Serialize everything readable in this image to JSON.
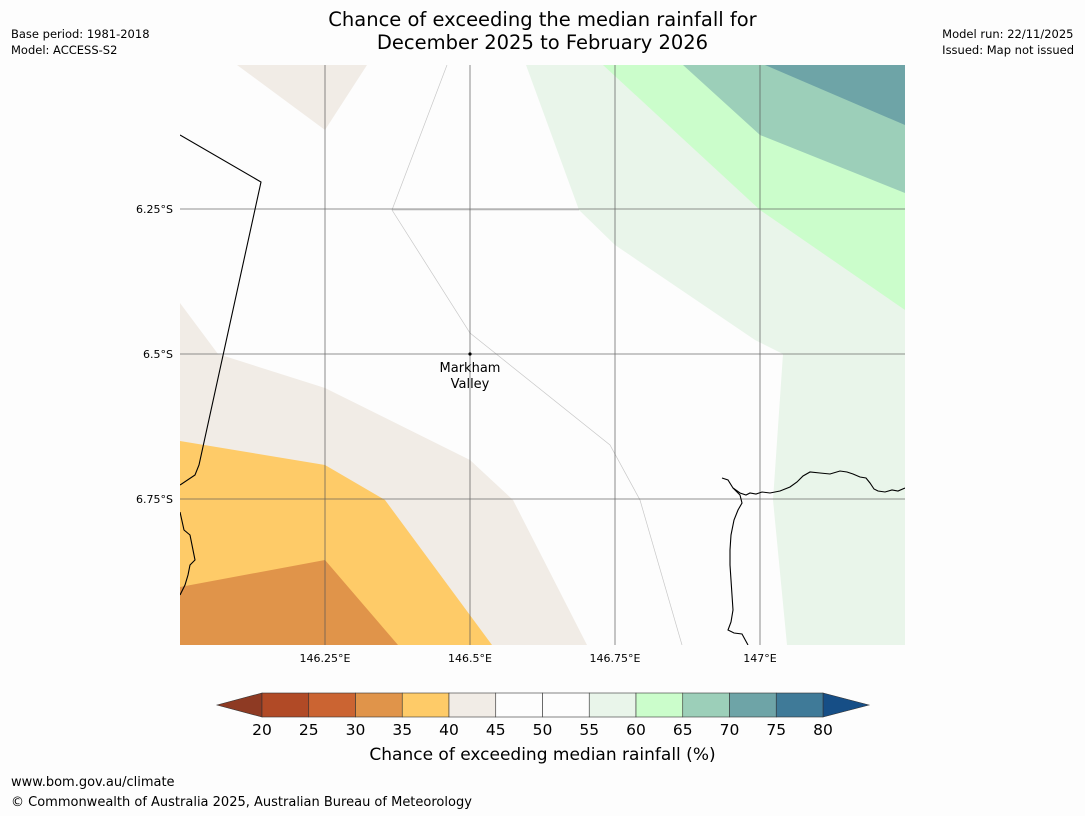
{
  "title": {
    "line1": "Chance of exceeding the median rainfall for",
    "line2": "December 2025 to February 2026"
  },
  "meta_left": {
    "base_period": "Base period: 1981-2018",
    "model": "Model: ACCESS-S2"
  },
  "meta_right": {
    "model_run": "Model run: 22/11/2025",
    "issued": "Issued: Map not issued"
  },
  "map": {
    "lat_ticks": [
      {
        "value": -6.25,
        "label": "6.25°S"
      },
      {
        "value": -6.5,
        "label": "6.5°S"
      },
      {
        "value": -6.75,
        "label": "6.75°S"
      }
    ],
    "lon_ticks": [
      {
        "value": 146.25,
        "label": "146.25°E"
      },
      {
        "value": 146.5,
        "label": "146.5°E"
      },
      {
        "value": 146.75,
        "label": "146.75°E"
      },
      {
        "value": 147.0,
        "label": "147°E"
      }
    ],
    "place": {
      "name_line1": "Markham",
      "name_line2": "Valley",
      "lat": -6.5,
      "lon": 146.5
    }
  },
  "colorbar": {
    "levels": [
      20,
      25,
      30,
      35,
      40,
      45,
      50,
      55,
      60,
      65,
      70,
      75,
      80
    ],
    "under_color": "#8e3a23",
    "over_color": "#164e86",
    "colors": [
      "#b14a26",
      "#cb6432",
      "#e0944a",
      "#fecb68",
      "#f1ece6",
      "#fdfdfd",
      "#fdfdfd",
      "#e9f5ea",
      "#cbfdcb",
      "#9ccfb9",
      "#6ea4a7",
      "#3f7a98"
    ],
    "label": "Chance of exceeding median rainfall (%)"
  },
  "footer": {
    "url": "www.bom.gov.au/climate",
    "copyright": "© Commonwealth of Australia 2025, Australian Bureau of Meteorology"
  }
}
